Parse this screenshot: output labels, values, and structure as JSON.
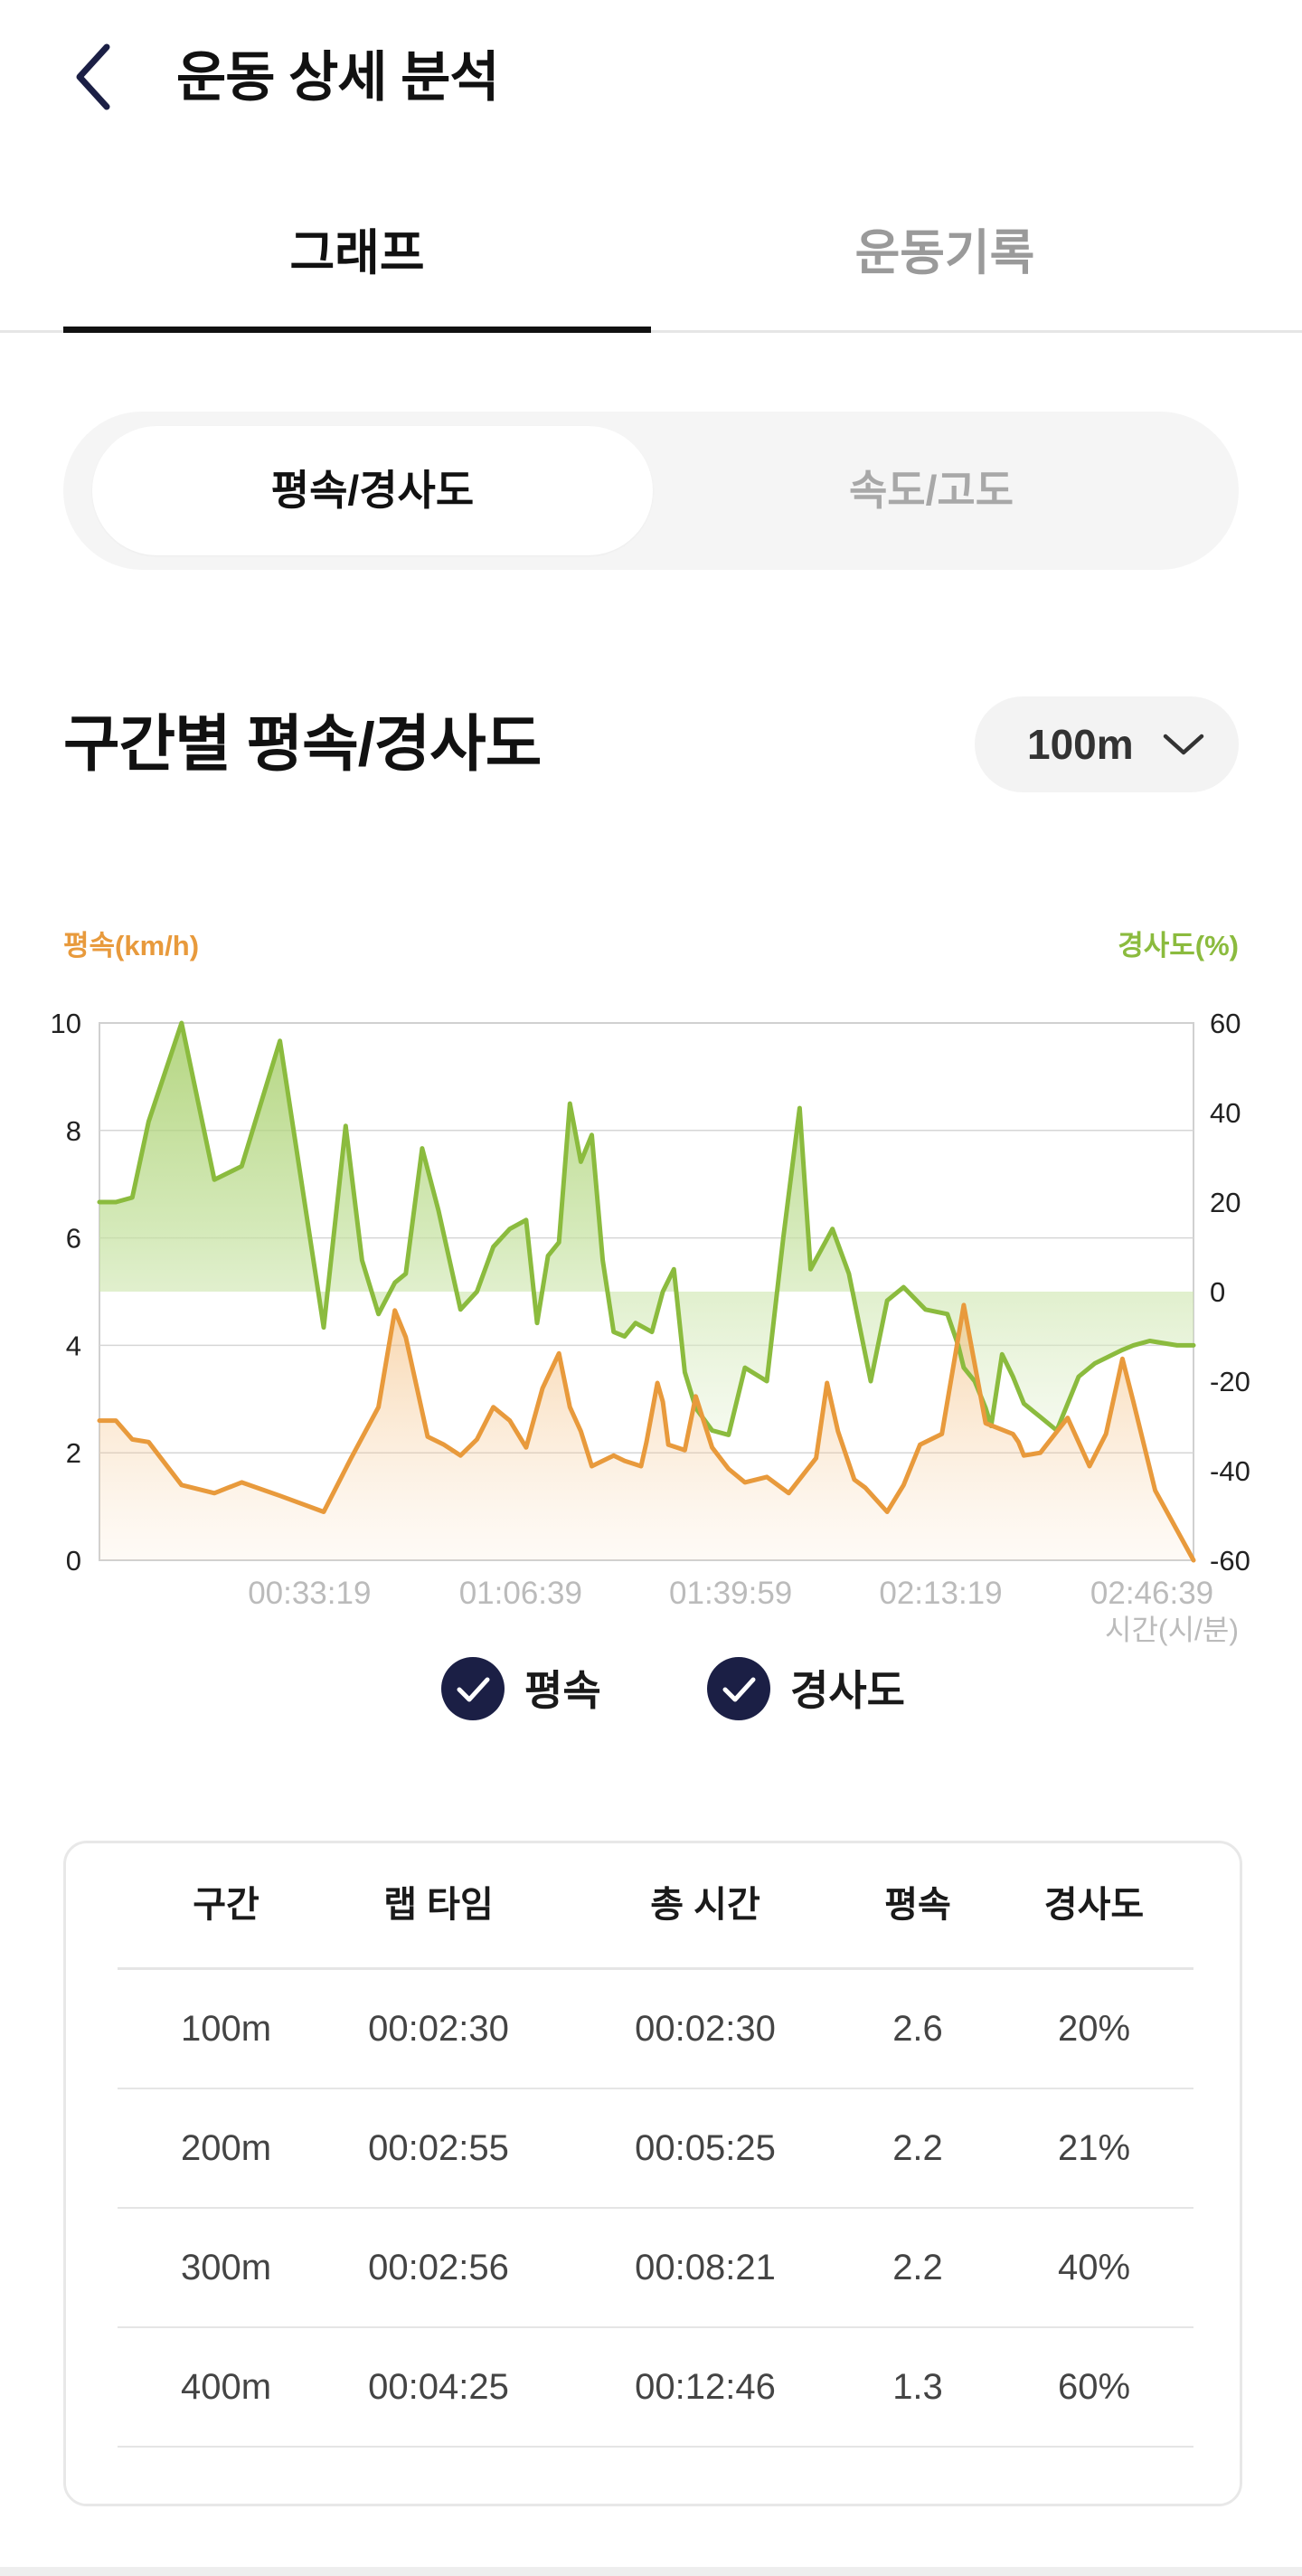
{
  "header": {
    "title": "운동 상세 분석"
  },
  "tabs": [
    {
      "label": "그래프",
      "active": true
    },
    {
      "label": "운동기록",
      "active": false
    }
  ],
  "segment": [
    {
      "label": "평속/경사도",
      "active": true
    },
    {
      "label": "속도/고도",
      "active": false
    }
  ],
  "section": {
    "title": "구간별 평속/경사도",
    "interval": "100m"
  },
  "chart_data": {
    "type": "line",
    "left_axis_label": "평속(km/h)",
    "right_axis_label": "경사도(%)",
    "xlabel": "시간(시/분)",
    "left_ylim": [
      0,
      10
    ],
    "right_ylim": [
      -60,
      60
    ],
    "left_ticks": [
      "0",
      "2",
      "4",
      "6",
      "8",
      "10"
    ],
    "right_ticks": [
      "-60",
      "-40",
      "-20",
      "0",
      "20",
      "40",
      "60"
    ],
    "x_ticks": [
      "00:33:19",
      "01:06:39",
      "01:39:59",
      "02:13:19",
      "02:46:39"
    ],
    "x_tick_fractions": [
      0.192,
      0.385,
      0.577,
      0.769,
      0.962
    ],
    "grid": true,
    "colors": {
      "speed": "#e89a3c",
      "slope": "#8bbb3e",
      "check": "#1b1f45",
      "axis_text": "#222222",
      "tick_text": "#bbbbbb"
    },
    "series": [
      {
        "name": "평속",
        "axis": "left",
        "x": [
          0.0,
          0.015,
          0.03,
          0.045,
          0.075,
          0.105,
          0.13,
          0.165,
          0.205,
          0.23,
          0.255,
          0.27,
          0.28,
          0.3,
          0.315,
          0.33,
          0.345,
          0.36,
          0.375,
          0.39,
          0.405,
          0.42,
          0.43,
          0.44,
          0.45,
          0.47,
          0.48,
          0.495,
          0.5,
          0.51,
          0.515,
          0.52,
          0.535,
          0.545,
          0.56,
          0.575,
          0.59,
          0.61,
          0.63,
          0.655,
          0.665,
          0.675,
          0.69,
          0.7,
          0.72,
          0.735,
          0.75,
          0.77,
          0.79,
          0.81,
          0.835,
          0.84,
          0.845,
          0.86,
          0.885,
          0.905,
          0.92,
          0.935,
          0.945,
          0.965,
          1.0
        ],
        "values": [
          2.6,
          2.6,
          2.25,
          2.2,
          1.4,
          1.25,
          1.45,
          1.2,
          0.9,
          1.9,
          2.85,
          4.65,
          4.15,
          2.3,
          2.15,
          1.95,
          2.25,
          2.85,
          2.6,
          2.1,
          3.2,
          3.85,
          2.85,
          2.4,
          1.75,
          1.95,
          1.85,
          1.75,
          2.2,
          3.3,
          2.95,
          2.15,
          2.05,
          3.05,
          2.1,
          1.7,
          1.45,
          1.55,
          1.25,
          1.9,
          3.3,
          2.4,
          1.5,
          1.35,
          0.9,
          1.4,
          2.15,
          2.35,
          4.75,
          2.55,
          2.35,
          2.2,
          1.95,
          2.0,
          2.65,
          1.75,
          2.35,
          3.75,
          2.95,
          1.3,
          0.0
        ]
      },
      {
        "name": "경사도",
        "axis": "right",
        "x": [
          0.0,
          0.015,
          0.03,
          0.045,
          0.075,
          0.105,
          0.13,
          0.165,
          0.205,
          0.225,
          0.24,
          0.255,
          0.27,
          0.28,
          0.295,
          0.31,
          0.33,
          0.345,
          0.36,
          0.375,
          0.39,
          0.4,
          0.41,
          0.42,
          0.43,
          0.44,
          0.45,
          0.46,
          0.47,
          0.48,
          0.49,
          0.505,
          0.515,
          0.525,
          0.535,
          0.545,
          0.56,
          0.575,
          0.59,
          0.61,
          0.625,
          0.64,
          0.65,
          0.67,
          0.685,
          0.705,
          0.72,
          0.735,
          0.755,
          0.775,
          0.785,
          0.79,
          0.8,
          0.805,
          0.81,
          0.815,
          0.825,
          0.835,
          0.845,
          0.86,
          0.875,
          0.895,
          0.91,
          0.935,
          0.945,
          0.96,
          0.985,
          1.0
        ],
        "values": [
          20,
          20,
          21,
          38,
          60,
          25,
          28,
          56,
          -8,
          37,
          7,
          -5,
          2,
          4,
          32,
          18,
          -4,
          0,
          10,
          14,
          16,
          -7,
          8,
          11,
          42,
          29,
          35,
          7,
          -9,
          -10,
          -7,
          -9,
          0,
          5,
          -18,
          -26,
          -31,
          -32,
          -17,
          -20,
          12,
          41,
          5,
          14,
          4,
          -20,
          -2,
          1,
          -4,
          -5,
          -12,
          -17,
          -20,
          -23,
          -26,
          -30,
          -14,
          -19,
          -25,
          -28,
          -31,
          -19,
          -16,
          -13,
          -12,
          -11,
          -12,
          -12
        ]
      }
    ]
  },
  "legend": [
    {
      "label": "평속",
      "checked": true
    },
    {
      "label": "경사도",
      "checked": true
    }
  ],
  "table": {
    "columns": [
      "구간",
      "랩 타임",
      "총 시간",
      "평속",
      "경사도"
    ],
    "rows": [
      [
        "100m",
        "00:02:30",
        "00:02:30",
        "2.6",
        "20%"
      ],
      [
        "200m",
        "00:02:55",
        "00:05:25",
        "2.2",
        "21%"
      ],
      [
        "300m",
        "00:02:56",
        "00:08:21",
        "2.2",
        "40%"
      ],
      [
        "400m",
        "00:04:25",
        "00:12:46",
        "1.3",
        "60%"
      ]
    ]
  }
}
